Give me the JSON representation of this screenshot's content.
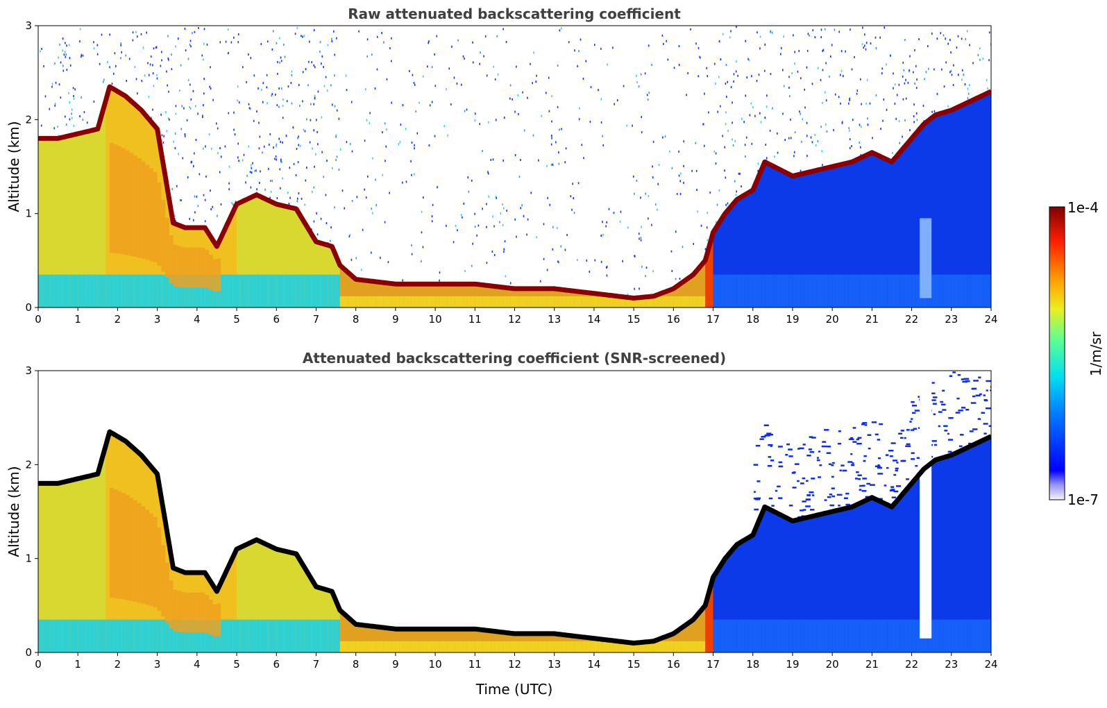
{
  "chart_data": [
    {
      "type": "heatmap",
      "title": "Raw attenuated backscattering coefficient",
      "xlabel": "",
      "ylabel": "Altitude (km)",
      "xlim": [
        0,
        24
      ],
      "ylim": [
        0,
        3
      ],
      "xticks": [
        "0",
        "1",
        "2",
        "3",
        "4",
        "5",
        "6",
        "7",
        "8",
        "9",
        "10",
        "11",
        "12",
        "13",
        "14",
        "15",
        "16",
        "17",
        "18",
        "19",
        "20",
        "21",
        "22",
        "23",
        "24"
      ],
      "yticks": [
        "0",
        "1",
        "2",
        "3"
      ],
      "layer_top_km": {
        "time_utc": [
          0,
          0.5,
          1,
          1.5,
          1.8,
          2.2,
          2.6,
          3.0,
          3.4,
          3.7,
          4.2,
          4.5,
          5.0,
          5.5,
          6.0,
          6.5,
          7.0,
          7.4,
          7.6,
          8.0,
          9.0,
          10.0,
          11.0,
          12.0,
          13.0,
          14.0,
          15.0,
          15.5,
          16.0,
          16.5,
          16.8,
          17.0,
          17.3,
          17.6,
          18.0,
          18.3,
          19.0,
          19.5,
          20.0,
          20.5,
          21.0,
          21.5,
          22.0,
          22.3,
          22.6,
          23.0,
          23.5,
          24.0
        ],
        "altitude_km": [
          1.8,
          1.8,
          1.85,
          1.9,
          2.35,
          2.25,
          2.1,
          1.9,
          0.9,
          0.85,
          0.85,
          0.65,
          1.1,
          1.2,
          1.1,
          1.05,
          0.7,
          0.65,
          0.45,
          0.3,
          0.25,
          0.25,
          0.25,
          0.2,
          0.2,
          0.15,
          0.1,
          0.12,
          0.2,
          0.35,
          0.5,
          0.8,
          1.0,
          1.15,
          1.25,
          1.55,
          1.4,
          1.45,
          1.5,
          1.55,
          1.65,
          1.55,
          1.8,
          1.95,
          2.05,
          2.1,
          2.2,
          2.3
        ]
      }
    },
    {
      "type": "heatmap",
      "title": "Attenuated backscattering coefficient (SNR-screened)",
      "xlabel": "Time (UTC)",
      "ylabel": "Altitude (km)",
      "xlim": [
        0,
        24
      ],
      "ylim": [
        0,
        3
      ],
      "xticks": [
        "0",
        "1",
        "2",
        "3",
        "4",
        "5",
        "6",
        "7",
        "8",
        "9",
        "10",
        "11",
        "12",
        "13",
        "14",
        "15",
        "16",
        "17",
        "18",
        "19",
        "20",
        "21",
        "22",
        "23",
        "24"
      ],
      "yticks": [
        "0",
        "1",
        "2",
        "3"
      ],
      "layer_top_km": {
        "time_utc": [
          0,
          0.5,
          1,
          1.5,
          1.8,
          2.2,
          2.6,
          3.0,
          3.4,
          3.7,
          4.2,
          4.5,
          5.0,
          5.5,
          6.0,
          6.5,
          7.0,
          7.4,
          7.6,
          8.0,
          9.0,
          10.0,
          11.0,
          12.0,
          13.0,
          14.0,
          15.0,
          15.5,
          16.0,
          16.5,
          16.8,
          17.0,
          17.3,
          17.6,
          18.0,
          18.3,
          19.0,
          19.5,
          20.0,
          20.5,
          21.0,
          21.5,
          22.0,
          22.3,
          22.6,
          23.0,
          23.5,
          24.0
        ],
        "altitude_km": [
          1.8,
          1.8,
          1.85,
          1.9,
          2.35,
          2.25,
          2.1,
          1.9,
          0.9,
          0.85,
          0.85,
          0.65,
          1.1,
          1.2,
          1.1,
          1.05,
          0.7,
          0.65,
          0.45,
          0.3,
          0.25,
          0.25,
          0.25,
          0.2,
          0.2,
          0.15,
          0.1,
          0.12,
          0.2,
          0.35,
          0.5,
          0.8,
          1.0,
          1.15,
          1.25,
          1.55,
          1.4,
          1.45,
          1.5,
          1.55,
          1.65,
          1.55,
          1.8,
          1.95,
          2.05,
          2.1,
          2.2,
          2.3
        ]
      }
    }
  ],
  "colorbar": {
    "label": "1/m/sr",
    "min_label": "1e-7",
    "max_label": "1e-4",
    "scale": "log",
    "colormap": "jet"
  }
}
